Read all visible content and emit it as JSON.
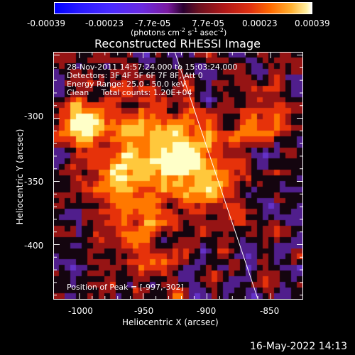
{
  "colorbar": {
    "ticks": [
      "-0.00039",
      "-0.00023",
      "-7.7e-05",
      "7.7e-05",
      "0.00023",
      "0.00039"
    ],
    "units_main": "(photons cm",
    "units_exp1": "-2",
    "units_mid": " s",
    "units_exp2": "-1",
    "units_mid2": " asec",
    "units_exp3": "-2",
    "units_end": ")"
  },
  "title": "Reconstructed RHESSI Image",
  "info": {
    "line1": "28-Nov-2011 14:57:24.000 to 15:03:24.000",
    "line2": "Detectors: 3F 4F 5F 6F 7F 8F, Att 0",
    "line3": "Energy Range: 25.0 - 50.0 keV",
    "line4": "Clean     Total counts: 1.20E+04",
    "peak": "Position of Peak = [-997,-302]"
  },
  "axes": {
    "xlabel": "Heliocentric X (arcsec)",
    "ylabel": "Heliocentric Y (arcsec)",
    "xticks": [
      "-1000",
      "-950",
      "-900",
      "-850"
    ],
    "yticks": [
      "-300",
      "-350",
      "-400"
    ]
  },
  "footer": {
    "timestamp": "16-May-2022 14:13"
  },
  "chart_data": {
    "type": "heatmap",
    "title": "Reconstructed RHESSI Image",
    "xlabel": "Heliocentric X (arcsec)",
    "ylabel": "Heliocentric Y (arcsec)",
    "xlim": [
      -1020,
      -825
    ],
    "ylim": [
      -443,
      -248
    ],
    "colorbar_range": [
      -0.00039,
      0.00039
    ],
    "peak": [
      -997,
      -302
    ],
    "limb_line": [
      [
        -925,
        -248
      ],
      [
        -860,
        -443
      ]
    ],
    "colors": {
      "negative": "#3a2a9a",
      "zero": "#000000",
      "positive": "#ff3000",
      "peak": "#ffffa0",
      "limb": "#ffffff"
    }
  }
}
